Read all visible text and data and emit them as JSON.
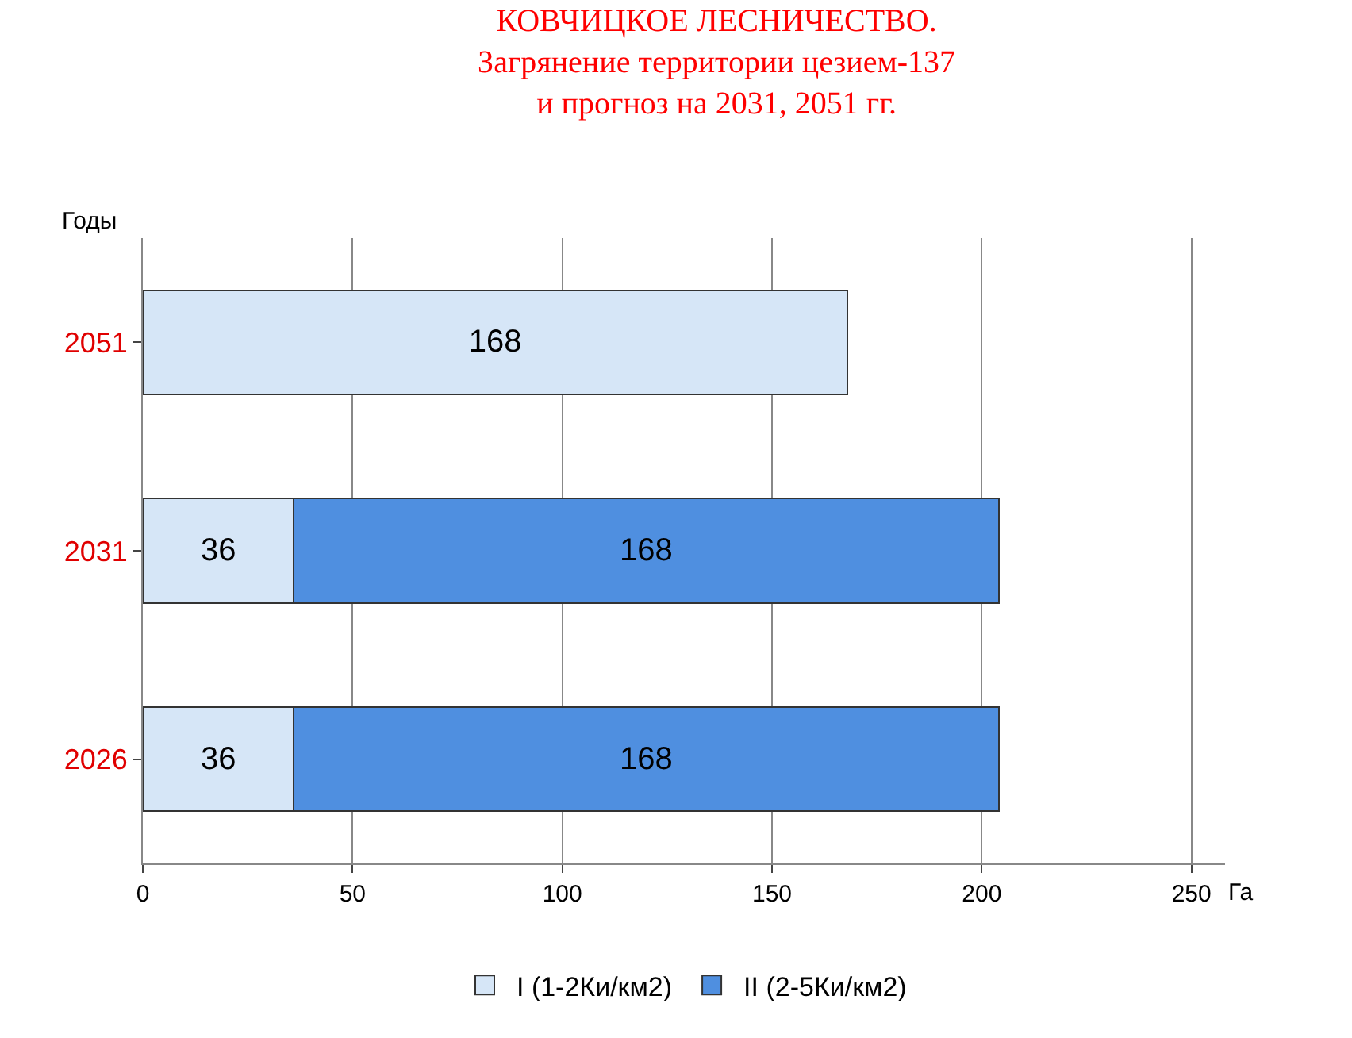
{
  "chart_data": {
    "type": "bar",
    "orientation": "horizontal",
    "stacked": true,
    "title": "КОВЧИЦКОЕ ЛЕСНИЧЕСТВО.\nЗагрянение территории цезием-137\nи прогноз на 2031, 2051 гг.",
    "xlabel": "Га",
    "ylabel": "Годы",
    "categories": [
      "2051",
      "2031",
      "2026"
    ],
    "series": [
      {
        "name": "I (1-2Ки/км2)",
        "color": "#d6e6f7",
        "values": [
          168,
          36,
          36
        ]
      },
      {
        "name": "II (2-5Ки/км2)",
        "color": "#4f8fe0",
        "values": [
          null,
          168,
          168
        ]
      }
    ],
    "xlim": [
      0,
      258
    ],
    "xticks": [
      0,
      50,
      100,
      150,
      200,
      250
    ],
    "grid": "x",
    "legend": "bottom",
    "data_labels": true
  }
}
